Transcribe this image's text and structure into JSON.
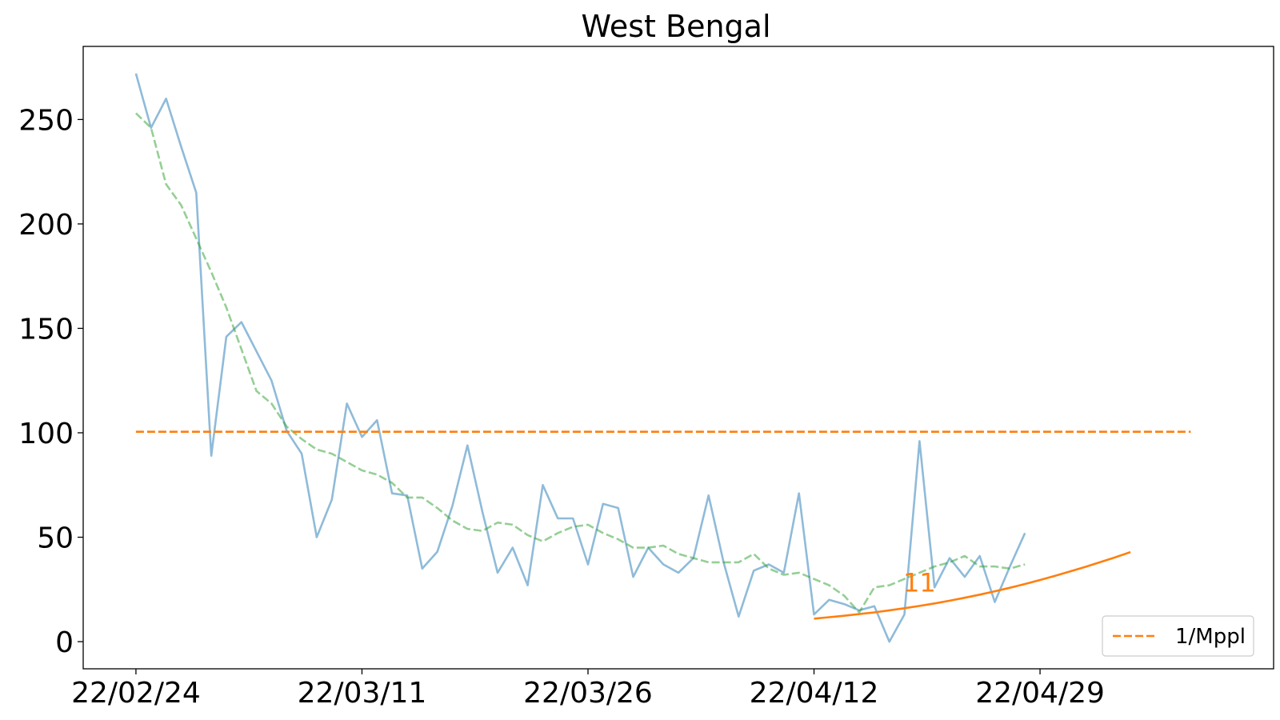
{
  "chart_data": {
    "type": "line",
    "title": "West Bengal",
    "xlabel": "",
    "ylabel": "",
    "ylim": [
      -13,
      285
    ],
    "yticks": [
      0,
      50,
      100,
      150,
      200,
      250
    ],
    "xlim": [
      -3.5,
      75.5
    ],
    "xtick_positions": [
      0,
      15,
      30,
      45,
      60
    ],
    "xtick_labels": [
      "22/02/24",
      "22/03/11",
      "22/03/26",
      "22/04/12",
      "22/04/29"
    ],
    "grid": false,
    "legend": {
      "placement": "bottom-right",
      "entries": [
        {
          "name": "1/Mppl",
          "style": "dashed",
          "color": "#ff7f0e"
        }
      ]
    },
    "series": [
      {
        "style": "solid",
        "color": "#1f77b4",
        "opacity": 0.5,
        "values": [
          272,
          246,
          260,
          237,
          215,
          89,
          146,
          153,
          139,
          125,
          101,
          90,
          50,
          68,
          114,
          98,
          106,
          71,
          70,
          35,
          43,
          65,
          94,
          62,
          33,
          45,
          27,
          75,
          59,
          59,
          37,
          66,
          64,
          31,
          45,
          37,
          33,
          40,
          70,
          38,
          12,
          34,
          37,
          33,
          71,
          13,
          20,
          18,
          15,
          17,
          0,
          13,
          96,
          26,
          40,
          31,
          41,
          19,
          36,
          52
        ]
      },
      {
        "style": "dashed",
        "color": "#2ca02c",
        "opacity": 0.5,
        "values": [
          253,
          246,
          219,
          209,
          193,
          177,
          160,
          140,
          120,
          114,
          103,
          97,
          92,
          90,
          86,
          82,
          80,
          76,
          69,
          69,
          64,
          58,
          54,
          53,
          57,
          56,
          51,
          48,
          52,
          55,
          56,
          52,
          49,
          45,
          45,
          46,
          42,
          40,
          38,
          38,
          38,
          42,
          35,
          32,
          33,
          30,
          27,
          22,
          14,
          26,
          27,
          30,
          33,
          36,
          38,
          41,
          36,
          36,
          35,
          37
        ]
      },
      {
        "style": "dashed",
        "color": "#ff7f0e",
        "opacity": 1.0,
        "name": "1/Mppl",
        "x_range": [
          0,
          70
        ],
        "constant": 100.5
      },
      {
        "style": "solid",
        "color": "#ff7f0e",
        "opacity": 1.0,
        "x_start": 45,
        "values": [
          11.0,
          11.7,
          12.4,
          13.2,
          14.0,
          15.0,
          16.0,
          17.1,
          18.3,
          19.6,
          21.0,
          22.5,
          24.1,
          25.8,
          27.6,
          29.5,
          31.5,
          33.6,
          35.8,
          38.1,
          40.4,
          42.9
        ]
      }
    ],
    "annotations": [
      {
        "text": "11",
        "x": 52,
        "y": 24,
        "color": "#ff7f0e"
      }
    ]
  }
}
